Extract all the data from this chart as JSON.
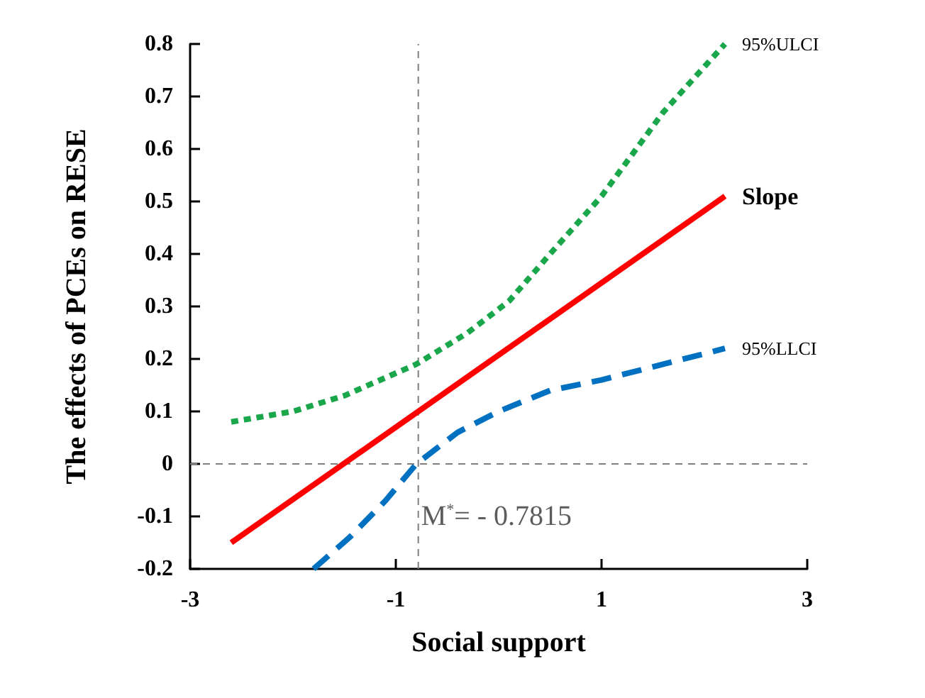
{
  "chart_data": {
    "type": "line",
    "xlabel": "Social support",
    "ylabel": "The effects of PCEs on RESE",
    "xlim": [
      -3,
      3
    ],
    "xticks": [
      -3,
      -1,
      1,
      3
    ],
    "ylim": [
      -0.2,
      0.8
    ],
    "yticks": [
      -0.2,
      -0.1,
      0,
      0.1,
      0.2,
      0.3,
      0.4,
      0.5,
      0.6,
      0.7,
      0.8
    ],
    "grid": false,
    "legend": false,
    "marker": "none",
    "series": [
      {
        "name": "95%ULCI",
        "color": "#1aa64a",
        "line_style": "dashed",
        "x": [
          -2.6,
          -2,
          -1.5,
          -0.8,
          -0.3,
          0.1,
          0.5,
          1,
          1.6,
          2.2
        ],
        "values": [
          0.08,
          0.1,
          0.13,
          0.19,
          0.25,
          0.31,
          0.4,
          0.51,
          0.67,
          0.8
        ]
      },
      {
        "name": "Slope",
        "color": "#ff0000",
        "line_style": "solid",
        "x": [
          -2.6,
          2.2
        ],
        "values": [
          -0.15,
          0.51
        ]
      },
      {
        "name": "95%LLCI",
        "color": "#0070c0",
        "line_style": "longdash",
        "x": [
          -1.8,
          -1.45,
          -1.1,
          -0.8,
          -0.4,
          0,
          0.5,
          1,
          1.6,
          2.2
        ],
        "values": [
          -0.2,
          -0.14,
          -0.07,
          0,
          0.06,
          0.1,
          0.14,
          0.16,
          0.19,
          0.22
        ]
      }
    ],
    "ref_lines": [
      {
        "axis": "x",
        "value": -0.7815,
        "line_style": "dashed",
        "color": "#808080"
      },
      {
        "axis": "y",
        "value": 0,
        "line_style": "dashed",
        "color": "#808080"
      }
    ],
    "annotations": [
      {
        "text": "M$^{*}$= - 0.7815",
        "x": -0.7815,
        "y": -0.1
      }
    ]
  }
}
